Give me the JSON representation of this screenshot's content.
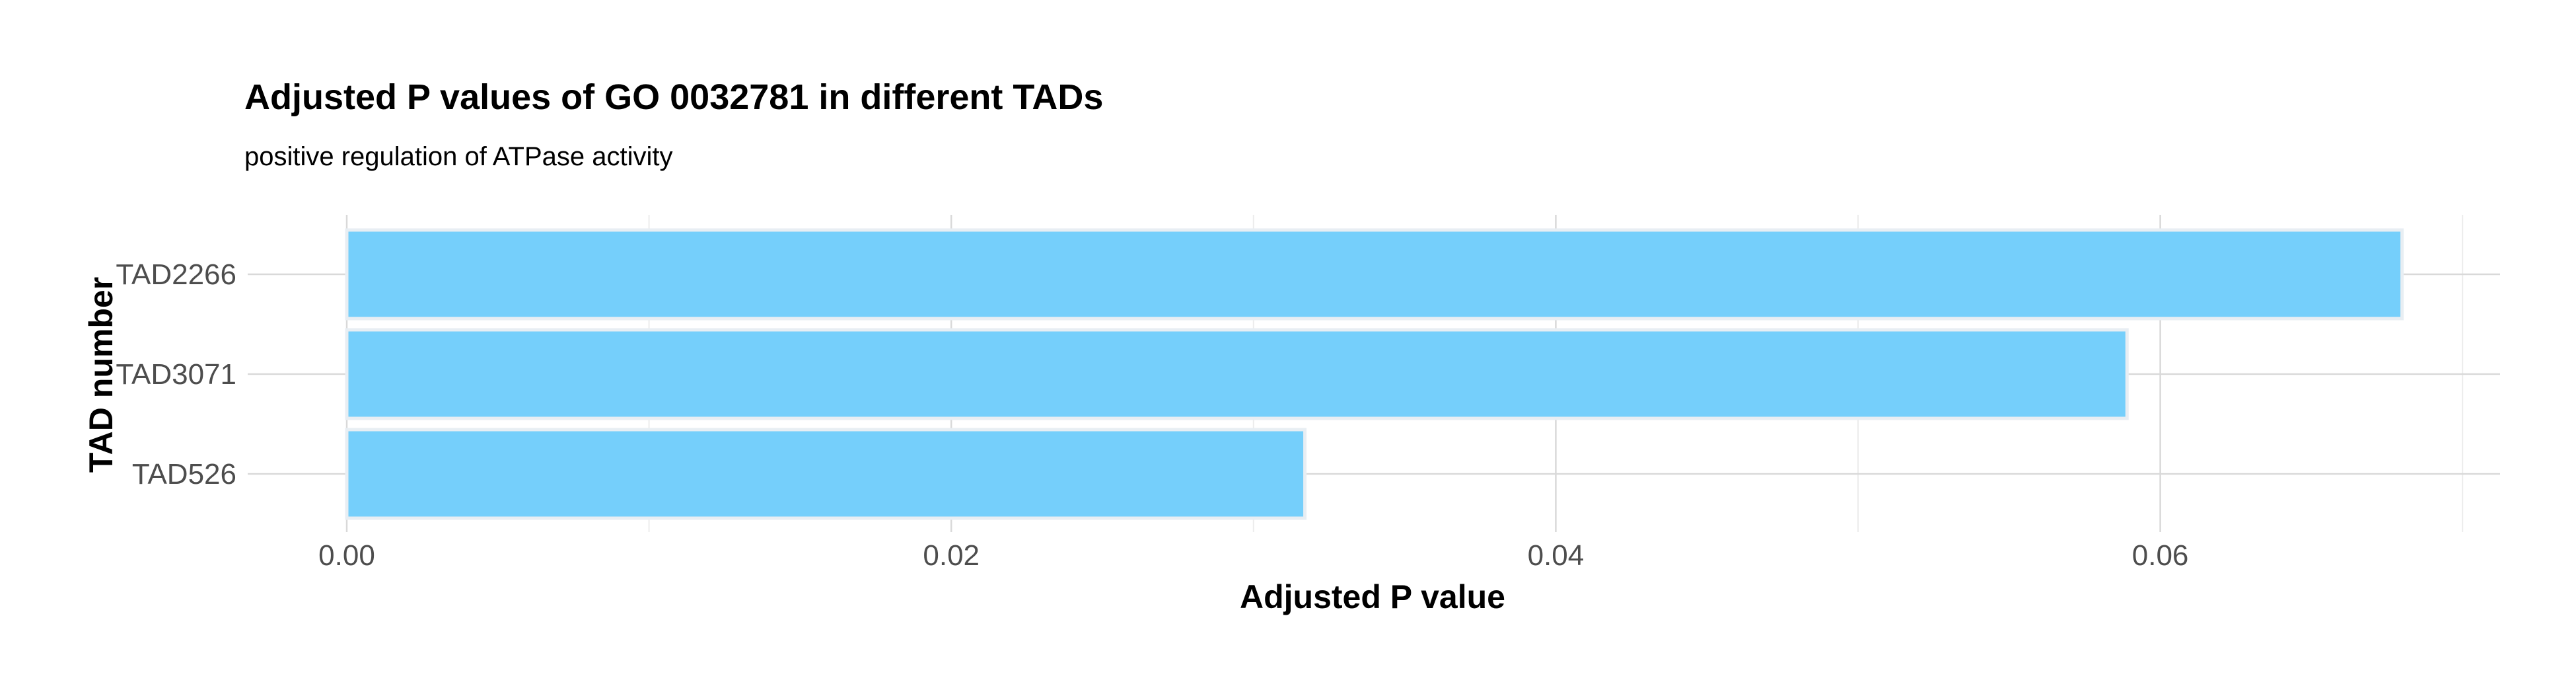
{
  "chart_data": {
    "type": "bar",
    "orientation": "horizontal",
    "title": "Adjusted P values of GO 0032781 in different TADs",
    "subtitle": "positive regulation of ATPase activity",
    "xlabel": "Adjusted P value",
    "ylabel": "TAD number",
    "categories": [
      "TAD2266",
      "TAD3071",
      "TAD526"
    ],
    "values": [
      0.068,
      0.0589,
      0.0317
    ],
    "xlim": [
      0,
      0.07
    ],
    "xticks": [
      0.0,
      0.02,
      0.04,
      0.06
    ],
    "xtick_labels": [
      "0.00",
      "0.02",
      "0.04",
      "0.06"
    ],
    "grid": true,
    "bar_color": "#75cffb"
  }
}
